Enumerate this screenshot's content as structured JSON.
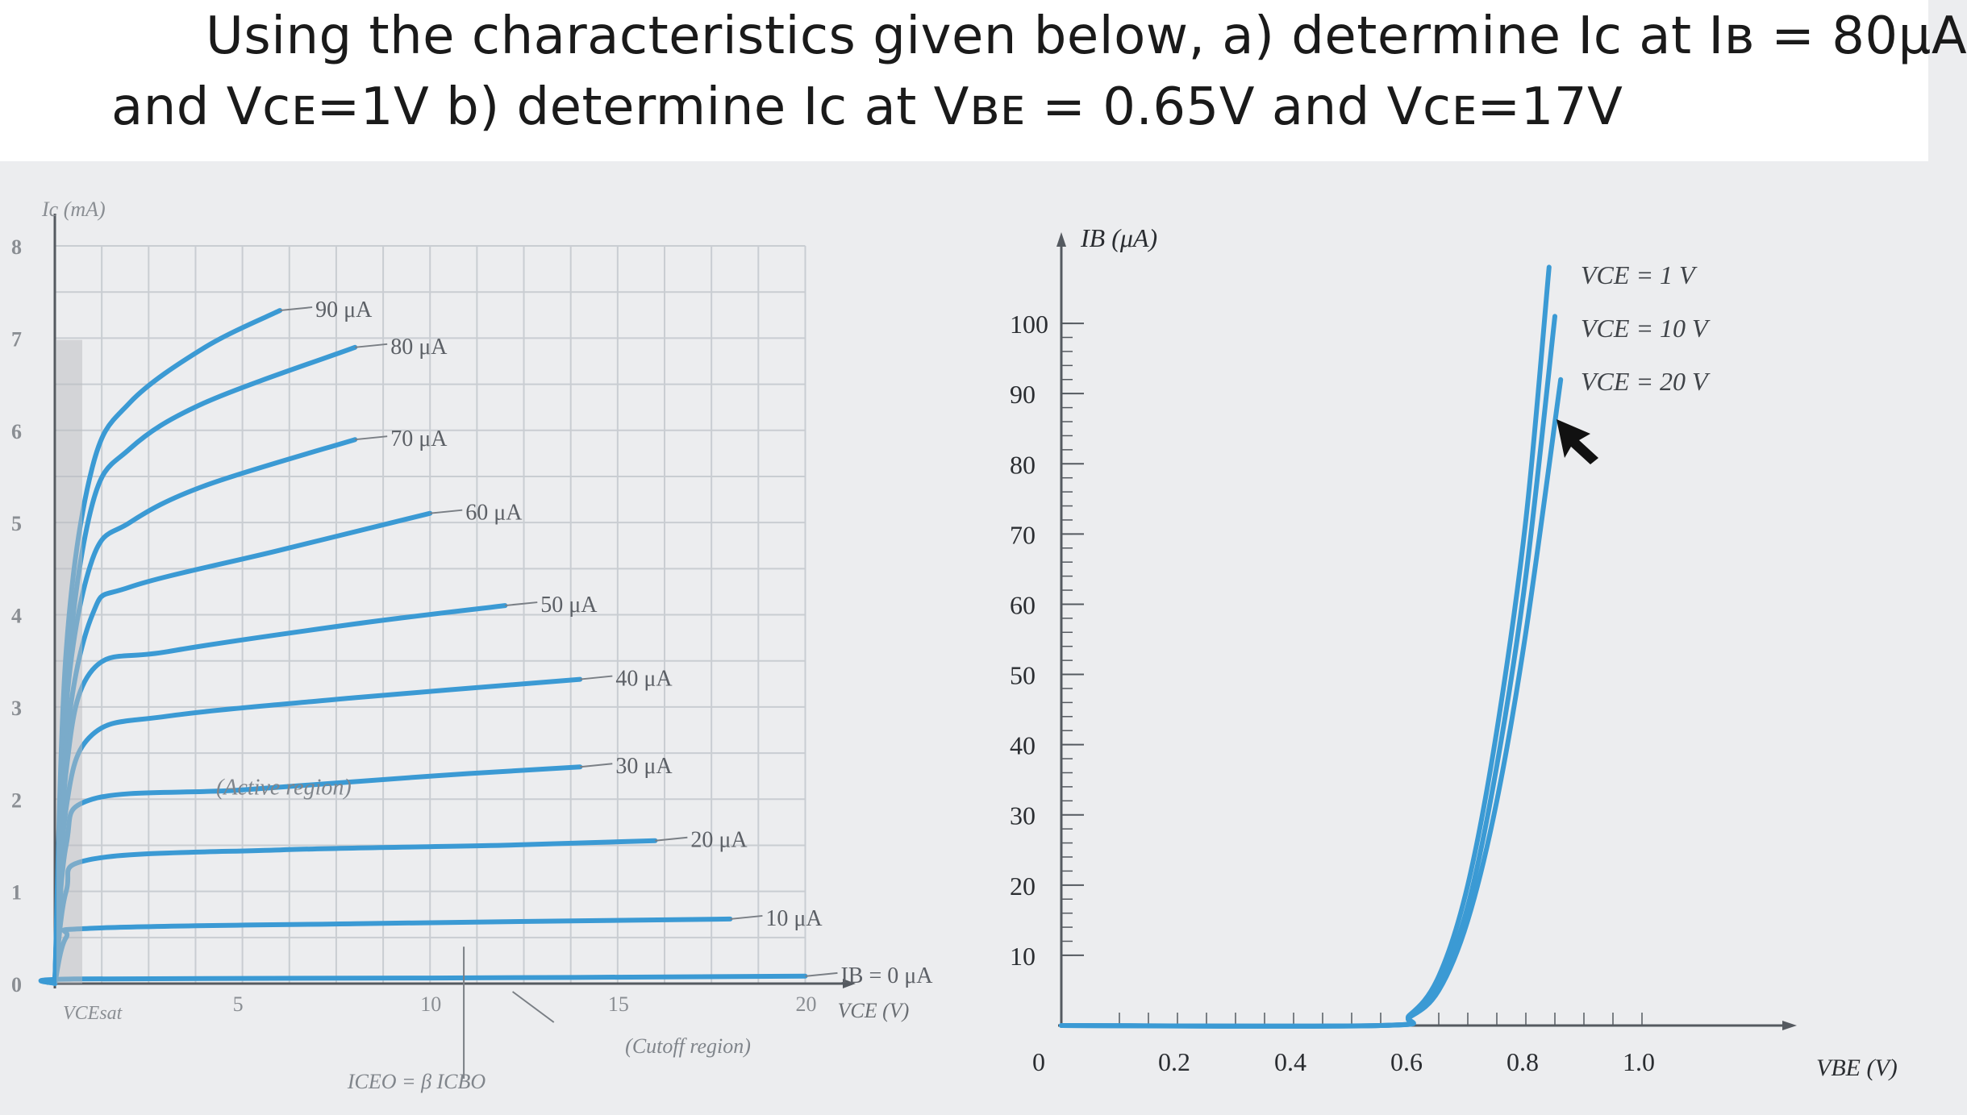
{
  "question": {
    "line1": "Using the characteristics given below, a) determine Iᴄ at Iʙ = 80μA",
    "line2": "and Vᴄᴇ=1V b) determine Iᴄ at Vʙᴇ = 0.65V and Vᴄᴇ=17V"
  },
  "chart_data": [
    {
      "type": "line",
      "title": "",
      "ylabel": "Ic (mA)",
      "xlabel": "VCE (V)",
      "xlim": [
        0,
        21
      ],
      "ylim": [
        0,
        8
      ],
      "x_ticks": [
        "5",
        "10",
        "15",
        "20"
      ],
      "y_ticks": [
        "0",
        "1",
        "2",
        "3",
        "4",
        "5",
        "6",
        "7",
        "8"
      ],
      "y_tick_values": [
        0,
        1,
        2,
        3,
        4,
        5,
        6,
        7,
        8
      ],
      "x_tick_values": [
        5,
        10,
        15,
        20
      ],
      "origin_label": "VCEsat",
      "series": [
        {
          "name": "90 μA",
          "ib_uA": 90,
          "points": [
            [
              0,
              0
            ],
            [
              0.3,
              3.6
            ],
            [
              1,
              5.6
            ],
            [
              2,
              6.3
            ],
            [
              4,
              6.9
            ],
            [
              6,
              7.3
            ]
          ]
        },
        {
          "name": "80 μA",
          "ib_uA": 80,
          "points": [
            [
              0,
              0
            ],
            [
              0.3,
              3.2
            ],
            [
              1,
              5.2
            ],
            [
              2,
              5.8
            ],
            [
              4,
              6.3
            ],
            [
              8,
              6.9
            ]
          ]
        },
        {
          "name": "70 μA",
          "ib_uA": 70,
          "points": [
            [
              0,
              0
            ],
            [
              0.3,
              3.0
            ],
            [
              1,
              4.6
            ],
            [
              2,
              5.0
            ],
            [
              4,
              5.4
            ],
            [
              8,
              5.9
            ]
          ]
        },
        {
          "name": "60 μA",
          "ib_uA": 60,
          "points": [
            [
              0,
              0
            ],
            [
              0.3,
              2.6
            ],
            [
              1,
              4.0
            ],
            [
              2,
              4.3
            ],
            [
              6,
              4.7
            ],
            [
              10,
              5.1
            ]
          ]
        },
        {
          "name": "50 μA",
          "ib_uA": 50,
          "points": [
            [
              0,
              0
            ],
            [
              0.3,
              2.3
            ],
            [
              1,
              3.4
            ],
            [
              3,
              3.6
            ],
            [
              8,
              3.9
            ],
            [
              12,
              4.1
            ]
          ]
        },
        {
          "name": "40 μA",
          "ib_uA": 40,
          "points": [
            [
              0,
              0
            ],
            [
              0.3,
              1.9
            ],
            [
              1,
              2.7
            ],
            [
              3,
              2.9
            ],
            [
              8,
              3.1
            ],
            [
              14,
              3.3
            ]
          ]
        },
        {
          "name": "30 μA",
          "ib_uA": 30,
          "points": [
            [
              0,
              0
            ],
            [
              0.3,
              1.5
            ],
            [
              1,
              2.0
            ],
            [
              5,
              2.1
            ],
            [
              10,
              2.25
            ],
            [
              14,
              2.35
            ]
          ]
        },
        {
          "name": "20 μA",
          "ib_uA": 20,
          "points": [
            [
              0,
              0
            ],
            [
              0.3,
              1.0
            ],
            [
              1,
              1.35
            ],
            [
              6,
              1.45
            ],
            [
              12,
              1.5
            ],
            [
              16,
              1.55
            ]
          ]
        },
        {
          "name": "10 μA",
          "ib_uA": 10,
          "points": [
            [
              0,
              0
            ],
            [
              0.3,
              0.5
            ],
            [
              1,
              0.6
            ],
            [
              8,
              0.65
            ],
            [
              18,
              0.7
            ]
          ]
        },
        {
          "name": "IB = 0 μA",
          "ib_uA": 0,
          "points": [
            [
              0,
              0
            ],
            [
              0.5,
              0.05
            ],
            [
              10,
              0.06
            ],
            [
              20,
              0.08
            ]
          ]
        }
      ],
      "annotations": [
        "(Active region)",
        "(Cutoff region)",
        "ICEO = β ICBO"
      ]
    },
    {
      "type": "line",
      "title": "",
      "ylabel": "IB (μA)",
      "xlabel": "VBE (V)",
      "xlim": [
        0,
        1.2
      ],
      "ylim": [
        0,
        110
      ],
      "x_ticks": [
        "0.2",
        "0.4",
        "0.6",
        "0.8",
        "1.0"
      ],
      "x_tick_values": [
        0.2,
        0.4,
        0.6,
        0.8,
        1.0
      ],
      "y_ticks": [
        "10",
        "20",
        "30",
        "40",
        "50",
        "60",
        "70",
        "80",
        "90",
        "100"
      ],
      "y_tick_values": [
        10,
        20,
        30,
        40,
        50,
        60,
        70,
        80,
        90,
        100
      ],
      "origin_label": "0",
      "series": [
        {
          "name": "VCE = 1 V",
          "points": [
            [
              0,
              0
            ],
            [
              0.55,
              0
            ],
            [
              0.6,
              1.5
            ],
            [
              0.65,
              7
            ],
            [
              0.7,
              20
            ],
            [
              0.75,
              42
            ],
            [
              0.8,
              72
            ],
            [
              0.84,
              108
            ]
          ]
        },
        {
          "name": "VCE = 10 V",
          "points": [
            [
              0,
              0
            ],
            [
              0.55,
              0
            ],
            [
              0.6,
              1.3
            ],
            [
              0.65,
              6
            ],
            [
              0.7,
              17
            ],
            [
              0.75,
              37
            ],
            [
              0.8,
              64
            ],
            [
              0.85,
              101
            ]
          ]
        },
        {
          "name": "VCE = 20 V",
          "points": [
            [
              0,
              0
            ],
            [
              0.55,
              0
            ],
            [
              0.6,
              1.2
            ],
            [
              0.65,
              5
            ],
            [
              0.7,
              15
            ],
            [
              0.75,
              32
            ],
            [
              0.8,
              56
            ],
            [
              0.86,
              92
            ]
          ]
        }
      ]
    }
  ],
  "colors": {
    "curve": "#3b9ad4",
    "grid": "#c9cdd2",
    "axis": "#555a60",
    "text": "#2a2d31"
  }
}
